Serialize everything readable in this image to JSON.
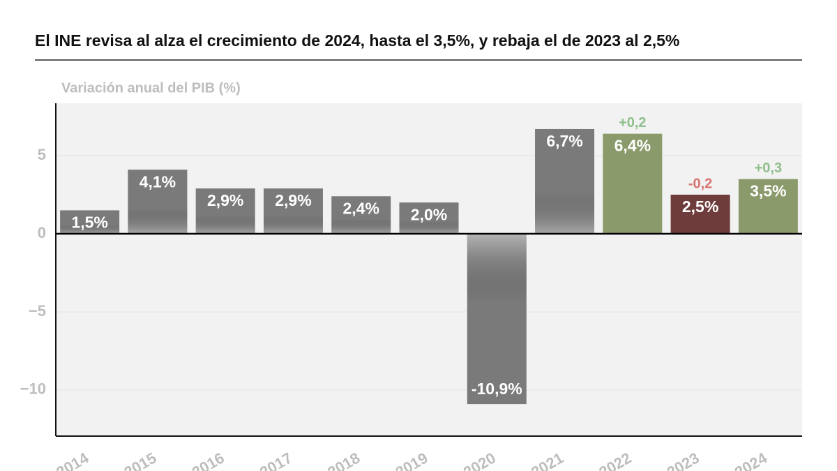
{
  "chart_data": {
    "type": "bar",
    "title": "El INE revisa al alza el crecimiento de 2024, hasta el 3,5%, y rebaja el de 2023 al 2,5%",
    "subtitle": "Variación anual del PIB (%)",
    "categories": [
      "2014",
      "2015",
      "2016",
      "2017",
      "2018",
      "2019",
      "2020",
      "2021",
      "2022",
      "2023",
      "2024"
    ],
    "values": [
      1.5,
      4.1,
      2.9,
      2.9,
      2.4,
      2.0,
      -10.9,
      6.7,
      6.4,
      2.5,
      3.5
    ],
    "value_labels": [
      "1,5%",
      "4,1%",
      "2,9%",
      "2,9%",
      "2,4%",
      "2,0%",
      "-10,9%",
      "6,7%",
      "6,4%",
      "2,5%",
      "3,5%"
    ],
    "colors": [
      "#7a7a7a",
      "#7a7a7a",
      "#7a7a7a",
      "#7a7a7a",
      "#7a7a7a",
      "#7a7a7a",
      "#7a7a7a",
      "#7a7a7a",
      "#8a9a6b",
      "#6f3c3c",
      "#8a9a6b"
    ],
    "revision_labels": [
      null,
      null,
      null,
      null,
      null,
      null,
      null,
      null,
      "+0,2",
      "-0,2",
      "+0,3"
    ],
    "revision_colors": [
      null,
      null,
      null,
      null,
      null,
      null,
      null,
      null,
      "#8fbf8c",
      "#d9736f",
      "#8fbf8c"
    ],
    "ylim": [
      -12.95,
      8.35
    ],
    "yticks": [
      {
        "value": -10,
        "label": "−10"
      },
      {
        "value": -5,
        "label": "−5"
      },
      0,
      5
    ],
    "grid": true
  }
}
